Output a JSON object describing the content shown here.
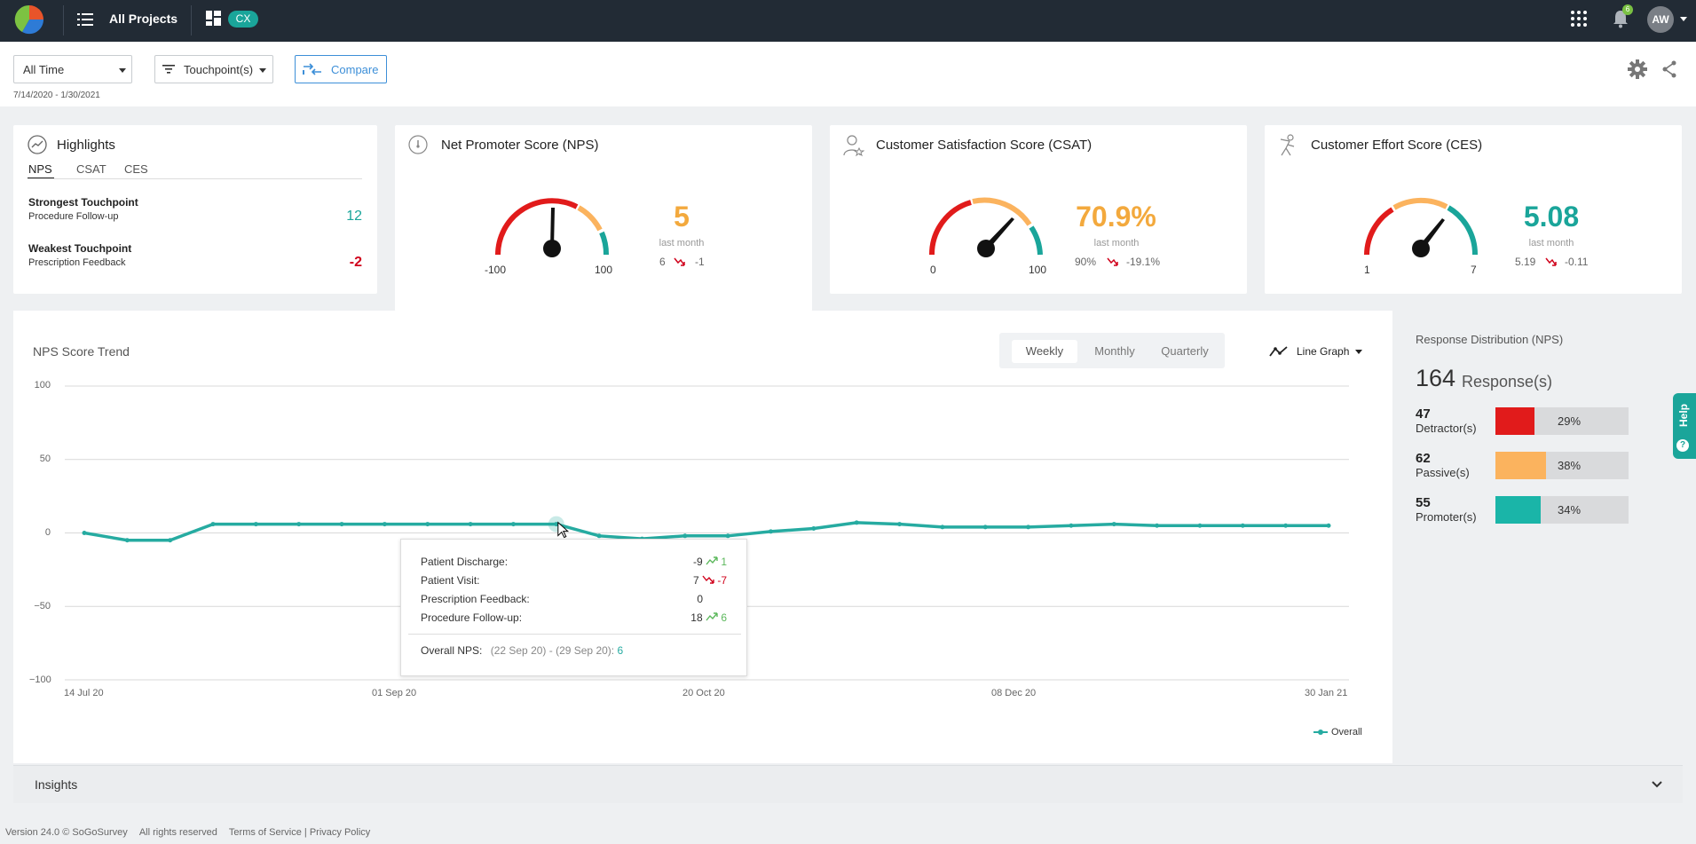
{
  "topbar": {
    "projects_label": "All Projects",
    "badge": "CX",
    "notification_count": "6",
    "user_initials": "AW"
  },
  "filters": {
    "time_range": "All Time",
    "touchpoints": "Touchpoint(s)",
    "compare": "Compare",
    "date_range": "7/14/2020 - 1/30/2021"
  },
  "highlights": {
    "title": "Highlights",
    "tabs": [
      "NPS",
      "CSAT",
      "CES"
    ],
    "strongest_label": "Strongest Touchpoint",
    "strongest_name": "Procedure Follow-up",
    "strongest_value": "12",
    "weakest_label": "Weakest Touchpoint",
    "weakest_name": "Prescription Feedback",
    "weakest_value": "-2"
  },
  "nps": {
    "title": "Net Promoter Score (NPS)",
    "value": "5",
    "last_month_label": "last month",
    "prev": "6",
    "delta": "-1",
    "min": "-100",
    "max": "100"
  },
  "csat": {
    "title": "Customer Satisfaction Score (CSAT)",
    "value": "70.9%",
    "last_month_label": "last month",
    "prev": "90%",
    "delta": "-19.1%",
    "min": "0",
    "max": "100"
  },
  "ces": {
    "title": "Customer Effort Score (CES)",
    "value": "5.08",
    "last_month_label": "last month",
    "prev": "5.19",
    "delta": "-0.11",
    "min": "1",
    "max": "7"
  },
  "trend": {
    "title": "NPS Score Trend",
    "periods": [
      "Weekly",
      "Monthly",
      "Quarterly"
    ],
    "graph_type": "Line Graph",
    "legend": "Overall"
  },
  "tooltip": {
    "rows": [
      {
        "label": "Patient Discharge:",
        "value": "-9",
        "delta": "1",
        "dir": "up"
      },
      {
        "label": "Patient Visit:",
        "value": "7",
        "delta": "-7",
        "dir": "down"
      },
      {
        "label": "Prescription Feedback:",
        "value": "0",
        "delta": "",
        "dir": ""
      },
      {
        "label": "Procedure Follow-up:",
        "value": "18",
        "delta": "6",
        "dir": "up"
      }
    ],
    "overall_label": "Overall NPS:",
    "overall_range": "(22 Sep 20) - (29 Sep 20):",
    "overall_value": "6"
  },
  "chart_data": {
    "type": "line",
    "title": "NPS Score Trend",
    "xlabel": "",
    "ylabel": "",
    "ylim": [
      -100,
      100
    ],
    "y_ticks": [
      "100",
      "50",
      "0",
      "−50",
      "−100"
    ],
    "x_ticks": [
      "14 Jul 20",
      "01 Sep 20",
      "20 Oct 20",
      "08 Dec 20",
      "30 Jan 21"
    ],
    "x": [
      "14 Jul 20",
      "21 Jul 20",
      "28 Jul 20",
      "04 Aug 20",
      "11 Aug 20",
      "18 Aug 20",
      "25 Aug 20",
      "01 Sep 20",
      "08 Sep 20",
      "15 Sep 20",
      "22 Sep 20",
      "29 Sep 20",
      "06 Oct 20",
      "13 Oct 20",
      "20 Oct 20",
      "27 Oct 20",
      "03 Nov 20",
      "10 Nov 20",
      "17 Nov 20",
      "24 Nov 20",
      "01 Dec 20",
      "08 Dec 20",
      "15 Dec 20",
      "22 Dec 20",
      "29 Dec 20",
      "05 Jan 21",
      "12 Jan 21",
      "19 Jan 21",
      "26 Jan 21",
      "30 Jan 21"
    ],
    "series": [
      {
        "name": "Overall",
        "color": "#26aba1",
        "values": [
          0,
          -5,
          -5,
          6,
          6,
          6,
          6,
          6,
          6,
          6,
          6,
          6,
          -2,
          -4,
          -2,
          -2,
          1,
          3,
          7,
          6,
          4,
          4,
          4,
          5,
          6,
          5,
          5,
          5,
          5,
          5
        ]
      }
    ],
    "legend": "bottom-right",
    "grid": true,
    "highlighted_index": 11
  },
  "distribution": {
    "title": "Response Distribution (NPS)",
    "total": "164",
    "total_label": "Response(s)",
    "items": [
      {
        "count": "47",
        "label": "Detractor(s)",
        "pct": "29%",
        "color": "#e11b1b",
        "fraction": 0.29
      },
      {
        "count": "62",
        "label": "Passive(s)",
        "pct": "38%",
        "color": "#fbb35e",
        "fraction": 0.38
      },
      {
        "count": "55",
        "label": "Promoter(s)",
        "pct": "34%",
        "color": "#1ab5a8",
        "fraction": 0.34
      }
    ]
  },
  "help_label": "Help",
  "insights_label": "Insights",
  "footer": {
    "version": "Version 24.0 © SoGoSurvey",
    "rights": "All rights reserved",
    "terms": "Terms of Service",
    "sep": "|",
    "privacy": "Privacy Policy"
  }
}
